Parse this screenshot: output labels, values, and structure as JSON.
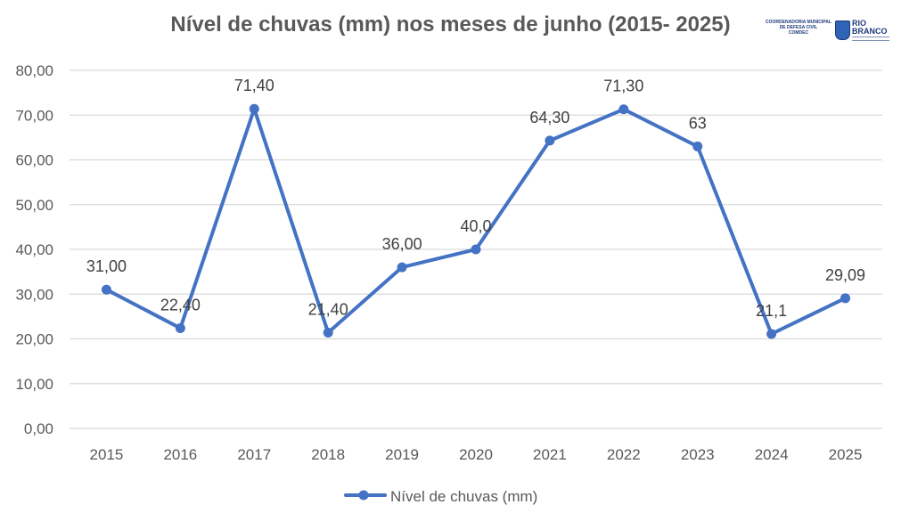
{
  "chart_data": {
    "type": "line",
    "title": "Nível de chuvas (mm) nos meses de junho (2015- 2025)",
    "categories": [
      "2015",
      "2016",
      "2017",
      "2018",
      "2019",
      "2020",
      "2021",
      "2022",
      "2023",
      "2024",
      "2025"
    ],
    "series": [
      {
        "name": "Nível de chuvas (mm)",
        "values": [
          31.0,
          22.4,
          71.4,
          21.4,
          36.0,
          40.0,
          64.3,
          71.3,
          63,
          21.1,
          29.09
        ],
        "labels": [
          "31,00",
          "22,40",
          "71,40",
          "21,40",
          "36,00",
          "40,0",
          "64,30",
          "71,30",
          "63",
          "21,1",
          "29,09"
        ],
        "color": "#4472c4"
      }
    ],
    "ylim": [
      0,
      80
    ],
    "yticks": [
      "0,00",
      "10,00",
      "20,00",
      "30,00",
      "40,00",
      "50,00",
      "60,00",
      "70,00",
      "80,00"
    ],
    "grid": true,
    "legend_position": "bottom"
  },
  "logos": {
    "comdec": {
      "line1": "COORDENADORIA MUNICIPAL",
      "line2": "DE DEFESA CIVIL",
      "line3": "COMDEC"
    },
    "rio_branco": {
      "line1": "RIO",
      "line2": "BRANCO"
    }
  },
  "colors": {
    "series": "#4472c4",
    "grid": "#d9d9d9",
    "text": "#595959"
  }
}
